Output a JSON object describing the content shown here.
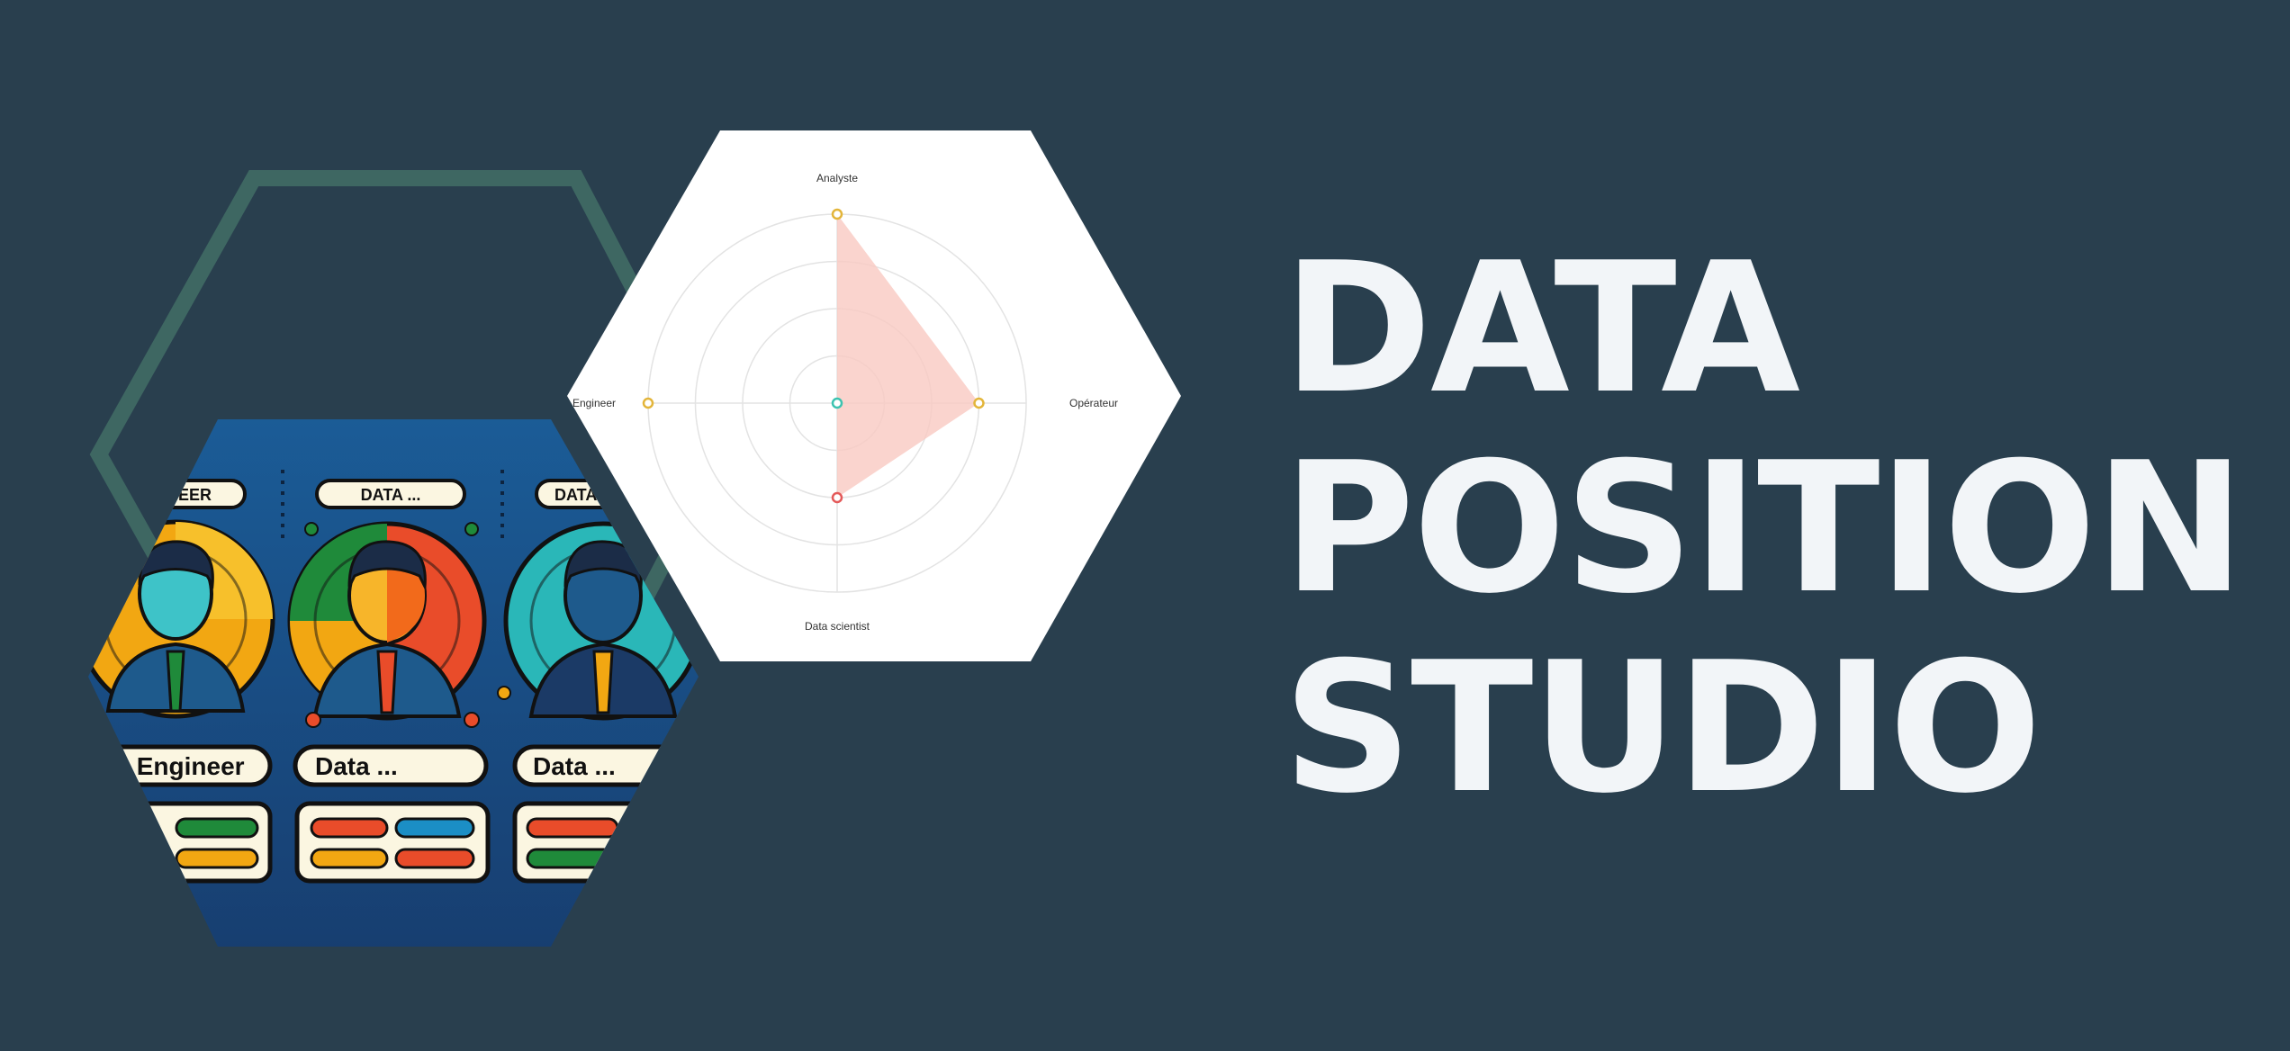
{
  "banner": {
    "title_lines": [
      "DATA",
      "POSITION",
      "STUDIO"
    ]
  },
  "illustration": {
    "cards": [
      {
        "top_label": "NEER",
        "bottom_label": "a Engineer"
      },
      {
        "top_label": "DATA ...",
        "bottom_label": "Data ..."
      },
      {
        "top_label": "DATA",
        "bottom_label": "Data ..."
      }
    ]
  },
  "chart_data": {
    "type": "radar",
    "axes": [
      "Analyste",
      "Opérateur",
      "Data scientist",
      "Engineer"
    ],
    "values": [
      1.0,
      0.75,
      0.5,
      0.0
    ],
    "rmax": 1.0,
    "rings": 4,
    "fill_color": "#f9c9c2",
    "point_colors": [
      "#e3b53a",
      "#e3b53a",
      "#e45a5a",
      "#e3b53a"
    ],
    "center_point_color": "#3cc3b0"
  },
  "colors": {
    "background": "#293f4e",
    "title": "#f2f5f8",
    "hex_outline": "#3e6762",
    "illustration_bg": "#1f4f86"
  }
}
